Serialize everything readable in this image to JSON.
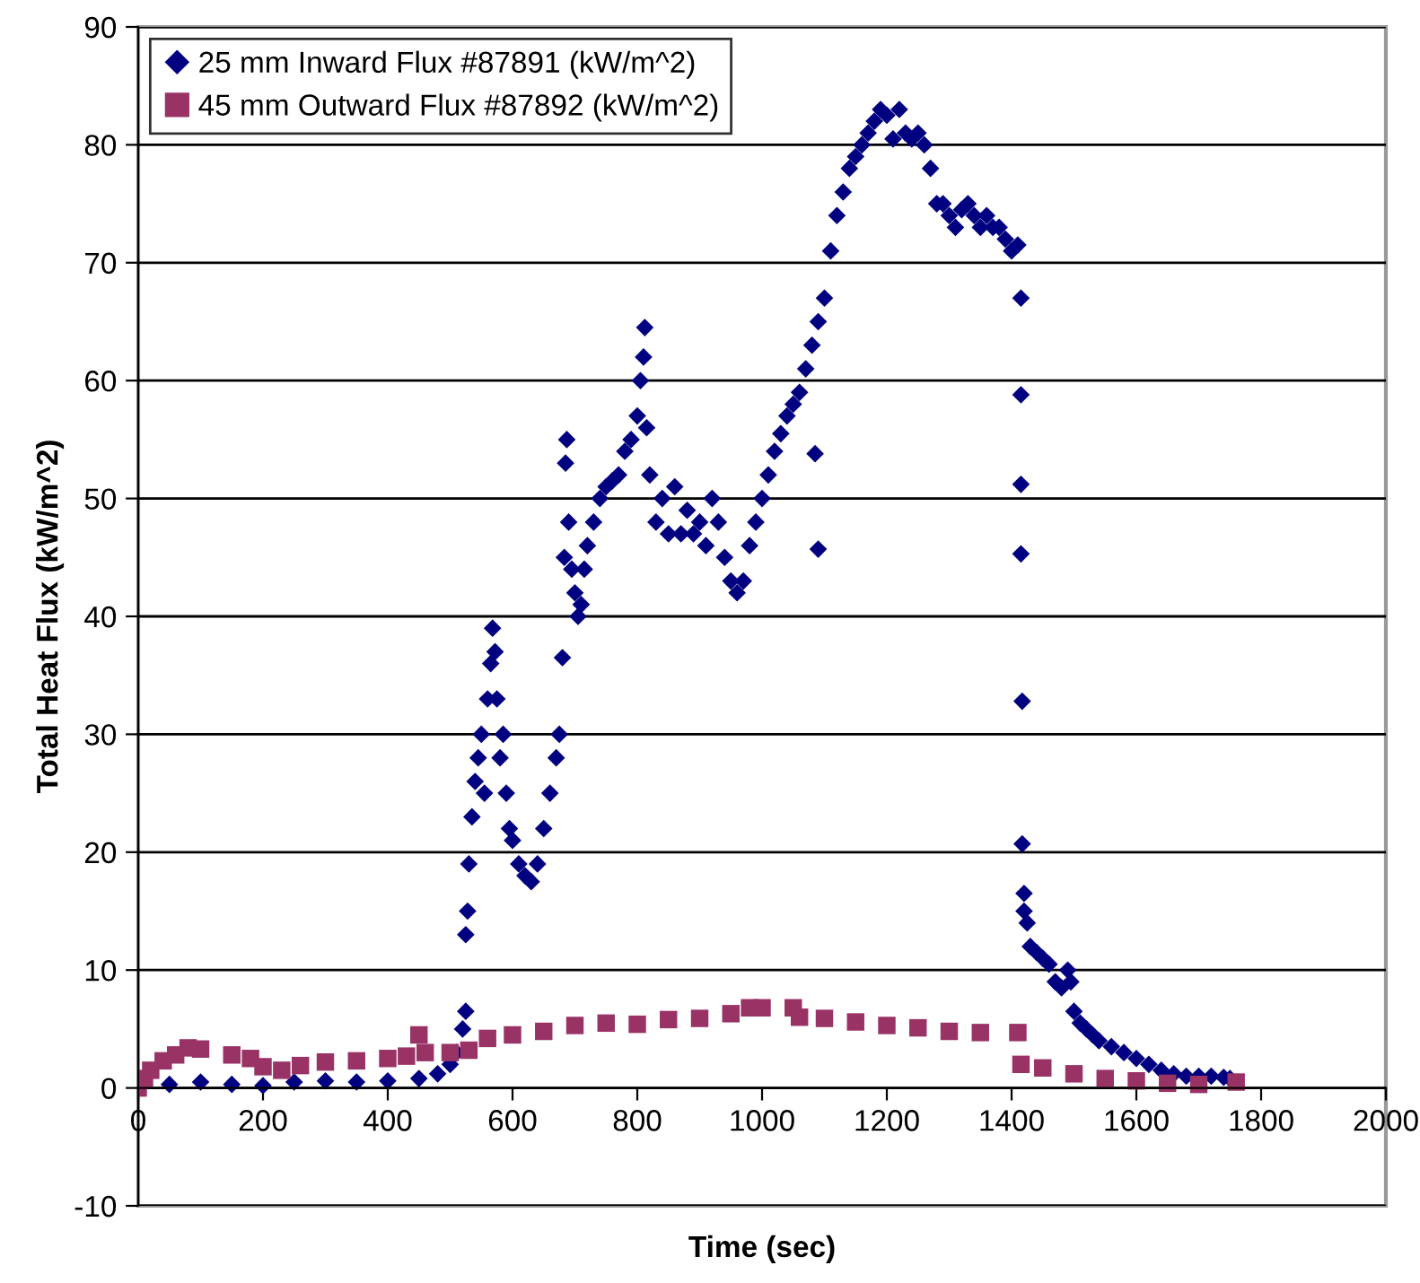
{
  "chart_data": {
    "type": "scatter",
    "xlabel": "Time (sec)",
    "ylabel": "Total Heat Flux (kW/m^2)",
    "xlim": [
      0,
      2000
    ],
    "xticks": [
      0,
      200,
      400,
      600,
      800,
      1000,
      1200,
      1400,
      1600,
      1800,
      2000
    ],
    "ylim": [
      -10,
      90
    ],
    "yticks": [
      -10,
      0,
      10,
      20,
      30,
      40,
      50,
      60,
      70,
      80,
      90
    ],
    "grid": "y",
    "legend": "top left",
    "series": [
      {
        "name": "25 mm Inward Flux #87891 (kW/m^2)",
        "color": "#000080",
        "marker": "diamond",
        "x": [
          50,
          100,
          150,
          200,
          250,
          300,
          350,
          400,
          450,
          480,
          500,
          510,
          520,
          525,
          525,
          528,
          530,
          535,
          540,
          545,
          550,
          555,
          560,
          565,
          568,
          572,
          575,
          580,
          585,
          590,
          595,
          600,
          610,
          620,
          630,
          640,
          650,
          660,
          670,
          675,
          680,
          683,
          685,
          687,
          690,
          695,
          700,
          705,
          710,
          715,
          720,
          730,
          740,
          750,
          760,
          770,
          780,
          790,
          800,
          805,
          810,
          812,
          815,
          820,
          830,
          840,
          850,
          860,
          870,
          880,
          890,
          900,
          910,
          920,
          930,
          940,
          950,
          960,
          970,
          980,
          990,
          1000,
          1010,
          1020,
          1030,
          1040,
          1050,
          1060,
          1070,
          1080,
          1085,
          1090,
          1090,
          1100,
          1110,
          1120,
          1130,
          1140,
          1150,
          1160,
          1170,
          1180,
          1190,
          1200,
          1210,
          1220,
          1230,
          1240,
          1250,
          1260,
          1270,
          1280,
          1290,
          1300,
          1310,
          1320,
          1330,
          1340,
          1350,
          1360,
          1370,
          1380,
          1390,
          1400,
          1410,
          1415,
          1415,
          1415,
          1415,
          1417,
          1417,
          1420,
          1420,
          1425,
          1430,
          1440,
          1450,
          1460,
          1470,
          1480,
          1490,
          1495,
          1500,
          1510,
          1520,
          1530,
          1540,
          1560,
          1580,
          1600,
          1620,
          1640,
          1660,
          1680,
          1700,
          1720,
          1740,
          1750
        ],
        "values": [
          0.3,
          0.5,
          0.3,
          0.2,
          0.5,
          0.6,
          0.5,
          0.6,
          0.8,
          1.2,
          2,
          3,
          5,
          6.5,
          13,
          15,
          19,
          23,
          26,
          28,
          30,
          25,
          33,
          36,
          39,
          37,
          33,
          28,
          30,
          25,
          22,
          21,
          19,
          18,
          17.5,
          19,
          22,
          25,
          28,
          30,
          36.5,
          45,
          53,
          55,
          48,
          44,
          42,
          40,
          41,
          44,
          46,
          48,
          50,
          51,
          51.5,
          52,
          54,
          55,
          57,
          60,
          62,
          64.5,
          56,
          52,
          48,
          50,
          47,
          51,
          47,
          49,
          47,
          48,
          46,
          50,
          48,
          45,
          43,
          42,
          43,
          46,
          48,
          50,
          52,
          54,
          55.5,
          57,
          58,
          59,
          61,
          63,
          53.8,
          45.7,
          65,
          67,
          71,
          74,
          76,
          78,
          79,
          80,
          81,
          82,
          83,
          82.5,
          80.5,
          83,
          81,
          80.5,
          81,
          80,
          78,
          75,
          75,
          74,
          73,
          74.5,
          75,
          74,
          73,
          74,
          73,
          73,
          72,
          71,
          71.5,
          67,
          58.8,
          51.2,
          45.3,
          32.8,
          20.7,
          16.5,
          15,
          14,
          12,
          11.5,
          11,
          10.5,
          9,
          8.5,
          10,
          9,
          6.5,
          5.5,
          5,
          4.5,
          4,
          3.5,
          3,
          2.5,
          2,
          1.5,
          1.2,
          1,
          1,
          1,
          0.9,
          0.8
        ]
      },
      {
        "name": "45 mm Outward Flux #87892 (kW/m^2)",
        "color": "#993366",
        "marker": "square",
        "x": [
          0,
          10,
          20,
          40,
          60,
          80,
          100,
          150,
          180,
          200,
          230,
          260,
          300,
          350,
          400,
          430,
          450,
          460,
          500,
          530,
          560,
          600,
          650,
          700,
          750,
          800,
          850,
          900,
          950,
          980,
          1000,
          1050,
          1060,
          1100,
          1150,
          1200,
          1250,
          1300,
          1350,
          1410,
          1415,
          1450,
          1500,
          1550,
          1600,
          1650,
          1700,
          1760
        ],
        "values": [
          0,
          0.8,
          1.5,
          2.3,
          2.8,
          3.4,
          3.3,
          2.8,
          2.5,
          1.8,
          1.5,
          1.9,
          2.2,
          2.3,
          2.5,
          2.7,
          4.5,
          3,
          3,
          3.2,
          4.2,
          4.5,
          4.8,
          5.3,
          5.5,
          5.4,
          5.8,
          5.9,
          6.3,
          6.8,
          6.8,
          6.8,
          6,
          5.9,
          5.6,
          5.3,
          5.1,
          4.8,
          4.7,
          4.7,
          2,
          1.7,
          1.2,
          0.8,
          0.6,
          0.4,
          0.3,
          0.5
        ]
      }
    ]
  }
}
